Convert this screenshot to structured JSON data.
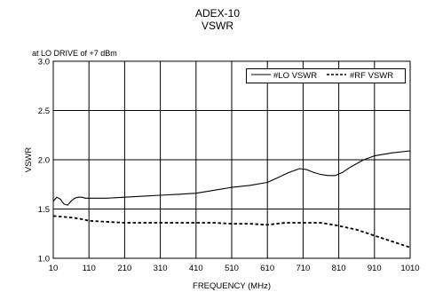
{
  "header": {
    "title": "ADEX-10",
    "subtitle": "VSWR"
  },
  "note": "at LO DRIVE of +7 dBm",
  "legend": {
    "lo_label": "#LO VSWR",
    "rf_label": "#RF VSWR"
  },
  "colors": {
    "line": "#000000",
    "grid": "#000000"
  },
  "chart_data": {
    "type": "line",
    "title": "ADEX-10 VSWR",
    "xlabel": "FREQUENCY (MHz)",
    "ylabel": "VSWR",
    "xlim": [
      10,
      1010
    ],
    "ylim": [
      1.0,
      3.0
    ],
    "x_ticks": [
      10,
      110,
      210,
      310,
      410,
      510,
      610,
      710,
      810,
      910,
      1010
    ],
    "y_ticks": [
      "1.0",
      "1.5",
      "2.0",
      "2.5",
      "3.0"
    ],
    "grid": true,
    "legend_position": "top-right",
    "series": [
      {
        "name": "#LO VSWR",
        "style": "solid",
        "x": [
          10,
          20,
          30,
          40,
          50,
          60,
          70,
          80,
          90,
          100,
          110,
          160,
          210,
          260,
          310,
          360,
          410,
          460,
          510,
          560,
          610,
          640,
          670,
          700,
          720,
          740,
          760,
          780,
          800,
          820,
          840,
          860,
          880,
          910,
          960,
          1010
        ],
        "y": [
          1.58,
          1.62,
          1.6,
          1.55,
          1.54,
          1.58,
          1.61,
          1.62,
          1.62,
          1.61,
          1.61,
          1.61,
          1.62,
          1.63,
          1.64,
          1.65,
          1.66,
          1.69,
          1.72,
          1.74,
          1.77,
          1.82,
          1.87,
          1.91,
          1.9,
          1.87,
          1.85,
          1.84,
          1.84,
          1.87,
          1.92,
          1.96,
          2.0,
          2.04,
          2.07,
          2.09
        ]
      },
      {
        "name": "#RF VSWR",
        "style": "dashed",
        "x": [
          10,
          40,
          70,
          100,
          110,
          160,
          210,
          260,
          310,
          360,
          410,
          460,
          510,
          560,
          610,
          660,
          710,
          760,
          810,
          860,
          910,
          960,
          1010
        ],
        "y": [
          1.43,
          1.42,
          1.41,
          1.39,
          1.38,
          1.37,
          1.36,
          1.36,
          1.36,
          1.36,
          1.36,
          1.36,
          1.35,
          1.35,
          1.34,
          1.36,
          1.36,
          1.36,
          1.33,
          1.29,
          1.23,
          1.17,
          1.11
        ]
      }
    ]
  }
}
